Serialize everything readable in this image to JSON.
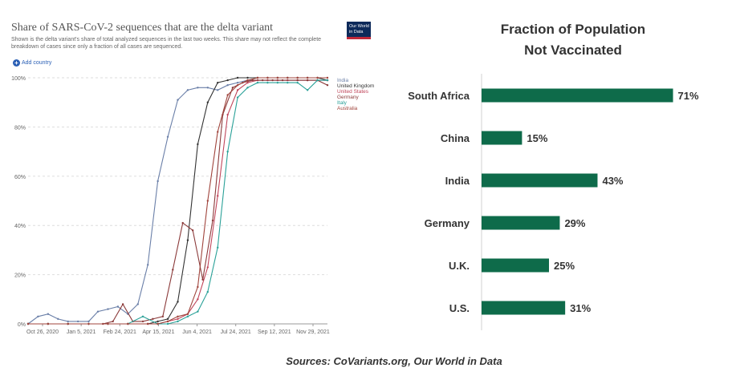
{
  "left_chart": {
    "title": "Share of SARS-CoV-2 sequences that are the delta variant",
    "subtitle": "Shown is the delta variant's share of total analyzed sequences in the last two weeks. This share may not reflect the complete breakdown of cases since only a fraction of all cases are sequenced.",
    "logo_text": "Our World in Data",
    "add_country_label": "Add country"
  },
  "right_chart": {
    "title_line1": "Fraction of Population",
    "title_line2": "Not Vaccinated"
  },
  "source": "Sources: CoVariants.org, Our World in Data",
  "chart_data": [
    {
      "type": "line",
      "title": "Share of SARS-CoV-2 sequences that are the delta variant",
      "x_ticks": [
        "Oct 26, 2020",
        "Jan 5, 2021",
        "Feb 24, 2021",
        "Apr 15, 2021",
        "Jun 4, 2021",
        "Jul 24, 2021",
        "Sep 12, 2021",
        "Nov 29, 2021"
      ],
      "y_ticks": [
        "0%",
        "20%",
        "40%",
        "60%",
        "80%",
        "100%"
      ],
      "ylim": [
        0,
        100
      ],
      "x_range": [
        "2020-10-12",
        "2021-12-06"
      ],
      "legend_position": "right",
      "series": [
        {
          "name": "India",
          "color": "#6a7fa8",
          "x": [
            "2020-10-12",
            "2020-10-26",
            "2020-11-09",
            "2020-11-23",
            "2020-12-07",
            "2020-12-21",
            "2021-01-05",
            "2021-01-18",
            "2021-02-01",
            "2021-02-15",
            "2021-03-01",
            "2021-03-15",
            "2021-03-29",
            "2021-04-12",
            "2021-04-26",
            "2021-05-10",
            "2021-05-24",
            "2021-06-07",
            "2021-06-21",
            "2021-07-05",
            "2021-07-19",
            "2021-08-02",
            "2021-08-16",
            "2021-08-30",
            "2021-09-13",
            "2021-09-27",
            "2021-10-11",
            "2021-10-25",
            "2021-11-08",
            "2021-11-22",
            "2021-12-06"
          ],
          "y": [
            0,
            3,
            4,
            2,
            1,
            1,
            1,
            5,
            6,
            7,
            4,
            8,
            24,
            58,
            76,
            91,
            95,
            96,
            96,
            95,
            97,
            98,
            99,
            99,
            99,
            99,
            99,
            99,
            99,
            99,
            99
          ]
        },
        {
          "name": "United Kingdom",
          "color": "#333333",
          "x": [
            "2020-10-12",
            "2020-11-09",
            "2020-12-07",
            "2021-01-05",
            "2021-02-01",
            "2021-03-01",
            "2021-03-29",
            "2021-04-12",
            "2021-04-26",
            "2021-05-10",
            "2021-05-24",
            "2021-06-07",
            "2021-06-21",
            "2021-07-05",
            "2021-07-19",
            "2021-08-02",
            "2021-08-16",
            "2021-08-30",
            "2021-09-13",
            "2021-09-27",
            "2021-10-11",
            "2021-10-25",
            "2021-11-08",
            "2021-11-22",
            "2021-12-06"
          ],
          "y": [
            0,
            0,
            0,
            0,
            0,
            0,
            0,
            1,
            2,
            9,
            34,
            73,
            90,
            98,
            99,
            100,
            100,
            100,
            100,
            100,
            100,
            100,
            100,
            100,
            99
          ]
        },
        {
          "name": "United States",
          "color": "#c0455a",
          "x": [
            "2020-10-12",
            "2020-11-09",
            "2020-12-07",
            "2021-01-05",
            "2021-02-01",
            "2021-03-01",
            "2021-03-29",
            "2021-04-12",
            "2021-04-26",
            "2021-05-10",
            "2021-05-24",
            "2021-06-07",
            "2021-06-21",
            "2021-07-05",
            "2021-07-19",
            "2021-08-02",
            "2021-08-16",
            "2021-08-30",
            "2021-09-13",
            "2021-09-27",
            "2021-10-11",
            "2021-10-25",
            "2021-11-08",
            "2021-11-22",
            "2021-12-06"
          ],
          "y": [
            0,
            0,
            0,
            0,
            0,
            0,
            0,
            0,
            1,
            2,
            4,
            10,
            23,
            52,
            85,
            95,
            98,
            99,
            99,
            99,
            99,
            99,
            99,
            99,
            99
          ]
        },
        {
          "name": "Germany",
          "color": "#8b3a3a",
          "x": [
            "2020-10-12",
            "2020-11-09",
            "2020-12-07",
            "2021-01-05",
            "2021-01-25",
            "2021-02-08",
            "2021-02-22",
            "2021-03-08",
            "2021-03-22",
            "2021-04-05",
            "2021-04-19",
            "2021-05-03",
            "2021-05-17",
            "2021-05-31",
            "2021-06-14",
            "2021-06-28",
            "2021-07-12",
            "2021-07-26",
            "2021-08-09",
            "2021-08-23",
            "2021-09-06",
            "2021-09-20",
            "2021-10-04",
            "2021-10-25",
            "2021-11-08",
            "2021-11-22",
            "2021-12-06"
          ],
          "y": [
            0,
            0,
            0,
            0,
            0,
            1,
            8,
            1,
            1,
            2,
            3,
            22,
            41,
            38,
            18,
            42,
            85,
            96,
            98,
            99,
            99,
            99,
            99,
            99,
            99,
            99,
            97
          ]
        },
        {
          "name": "Italy",
          "color": "#2aa198",
          "x": [
            "2020-10-12",
            "2020-11-09",
            "2020-12-07",
            "2021-01-05",
            "2021-02-01",
            "2021-03-01",
            "2021-03-22",
            "2021-04-12",
            "2021-04-26",
            "2021-05-10",
            "2021-05-24",
            "2021-06-07",
            "2021-06-21",
            "2021-07-05",
            "2021-07-19",
            "2021-08-02",
            "2021-08-16",
            "2021-08-30",
            "2021-09-13",
            "2021-09-27",
            "2021-10-11",
            "2021-10-25",
            "2021-11-08",
            "2021-11-22",
            "2021-12-06"
          ],
          "y": [
            0,
            0,
            0,
            0,
            0,
            0,
            3,
            0,
            0,
            1,
            3,
            5,
            13,
            31,
            70,
            92,
            96,
            98,
            98,
            98,
            98,
            98,
            95,
            99,
            99
          ]
        },
        {
          "name": "Australia",
          "color": "#a0443c",
          "x": [
            "2020-10-12",
            "2020-11-09",
            "2020-12-07",
            "2021-01-05",
            "2021-02-01",
            "2021-03-01",
            "2021-03-29",
            "2021-04-12",
            "2021-04-26",
            "2021-05-10",
            "2021-05-24",
            "2021-06-07",
            "2021-06-21",
            "2021-07-05",
            "2021-07-19",
            "2021-08-02",
            "2021-08-16",
            "2021-08-30",
            "2021-09-13",
            "2021-09-27",
            "2021-10-11",
            "2021-10-25",
            "2021-11-08",
            "2021-11-22",
            "2021-12-06"
          ],
          "y": [
            0,
            0,
            0,
            0,
            0,
            0,
            0,
            0,
            1,
            3,
            4,
            15,
            50,
            78,
            93,
            97,
            99,
            100,
            100,
            100,
            100,
            100,
            100,
            100,
            100
          ]
        }
      ]
    },
    {
      "type": "bar",
      "orientation": "horizontal",
      "title": "Fraction of Population Not Vaccinated",
      "categories": [
        "South Africa",
        "China",
        "India",
        "Germany",
        "U.K.",
        "U.S."
      ],
      "values": [
        71,
        15,
        43,
        29,
        25,
        31
      ],
      "value_labels": [
        "71%",
        "15%",
        "43%",
        "29%",
        "25%",
        "31%"
      ],
      "bar_color": "#0e6b4a",
      "xlim": [
        0,
        75
      ]
    }
  ]
}
